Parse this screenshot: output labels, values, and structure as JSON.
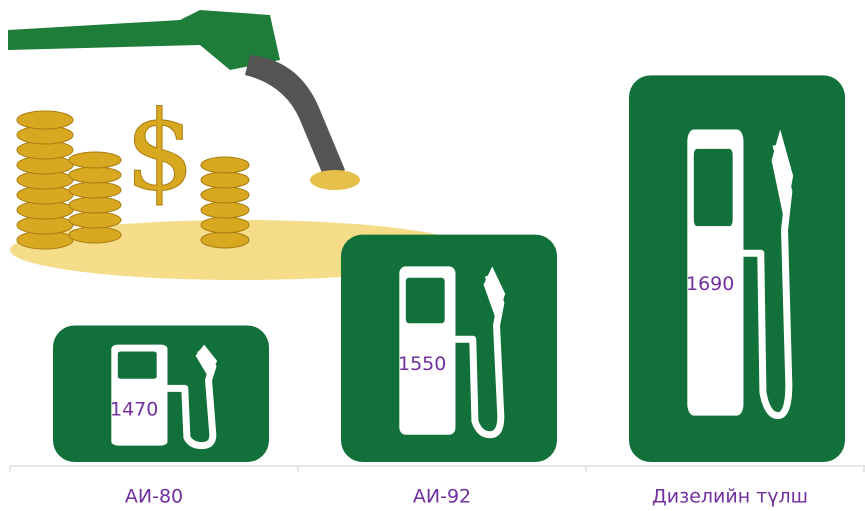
{
  "chart_data": {
    "type": "bar",
    "categories": [
      "АИ-80",
      "АИ-92",
      "Дизелийн түлш"
    ],
    "values": [
      1470,
      1550,
      1690
    ],
    "color": "#12703a",
    "label_color": "#7030a0",
    "ylim": [
      1350,
      1700
    ]
  }
}
